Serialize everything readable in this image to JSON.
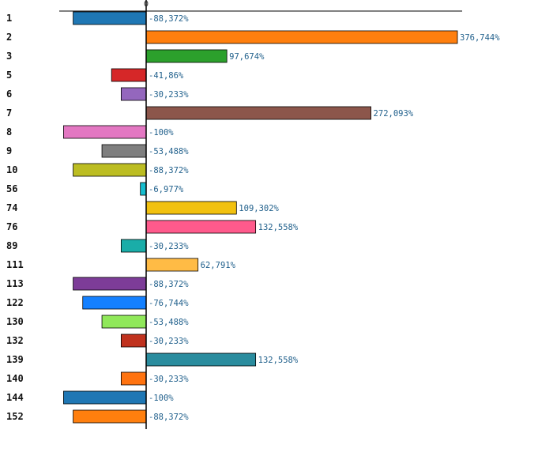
{
  "chart_data": {
    "type": "bar",
    "orientation": "horizontal",
    "title": "",
    "xlabel": "",
    "ylabel": "",
    "xlim": [
      -100,
      376.744
    ],
    "x_ticks": [
      "0"
    ],
    "grid": false,
    "legend": "none",
    "categories": [
      "1",
      "2",
      "3",
      "5",
      "6",
      "7",
      "8",
      "9",
      "10",
      "56",
      "74",
      "76",
      "89",
      "111",
      "113",
      "122",
      "130",
      "132",
      "139",
      "140",
      "144",
      "152"
    ],
    "values": [
      -88.372,
      376.744,
      97.674,
      -41.86,
      -30.233,
      272.093,
      -100,
      -53.488,
      -88.372,
      -6.977,
      109.302,
      132.558,
      -30.233,
      62.791,
      -88.372,
      -76.744,
      -53.488,
      -30.233,
      132.558,
      -30.233,
      -100,
      -88.372
    ],
    "value_labels": [
      "-88,372%",
      "376,744%",
      "97,674%",
      "-41,86%",
      "-30,233%",
      "272,093%",
      "-100%",
      "-53,488%",
      "-88,372%",
      "-6,977%",
      "109,302%",
      "132,558%",
      "-30,233%",
      "62,791%",
      "-88,372%",
      "-76,744%",
      "-53,488%",
      "-30,233%",
      "132,558%",
      "-30,233%",
      "-100%",
      "-88,372%"
    ],
    "colors": [
      "#1f77b4",
      "#ff7f0e",
      "#2ca02c",
      "#d62728",
      "#9467bd",
      "#8c564b",
      "#e377c2",
      "#7f7f7f",
      "#bcbd22",
      "#17becf",
      "#f2c10f",
      "#ff5a8c",
      "#1aada8",
      "#ffbb45",
      "#7d3c98",
      "#1480ff",
      "#90e85a",
      "#c0321e",
      "#2a8c9e",
      "#ff7310",
      "#1f77b4",
      "#ff7f0e"
    ]
  }
}
